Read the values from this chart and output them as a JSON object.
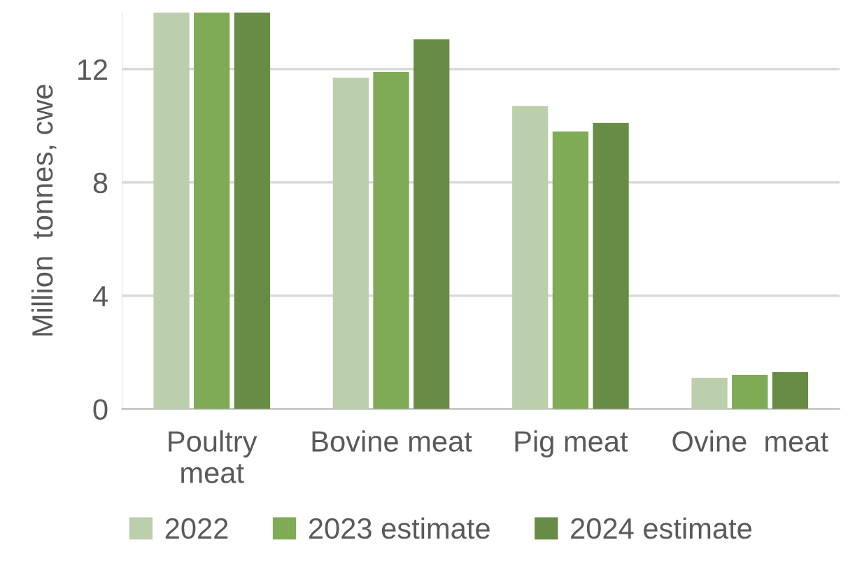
{
  "chart_data": {
    "type": "bar",
    "ylabel": "Million  tonnes, cwe",
    "categories": [
      "Poultry\nmeat",
      "Bovine meat",
      "Pig meat",
      "Ovine  meat"
    ],
    "series": [
      {
        "name": "2022",
        "color": "#bccfac",
        "values": [
          14,
          11.7,
          10.7,
          1.1
        ]
      },
      {
        "name": "2023 estimate",
        "color": "#7faa56",
        "values": [
          14,
          11.9,
          9.8,
          1.2
        ]
      },
      {
        "name": "2024 estimate",
        "color": "#688c45",
        "values": [
          14,
          13.05,
          10.1,
          1.3
        ]
      }
    ],
    "ylim": [
      0,
      14
    ],
    "yticks": [
      0,
      4,
      8,
      12
    ],
    "grid": "y",
    "legend": "bottom"
  }
}
